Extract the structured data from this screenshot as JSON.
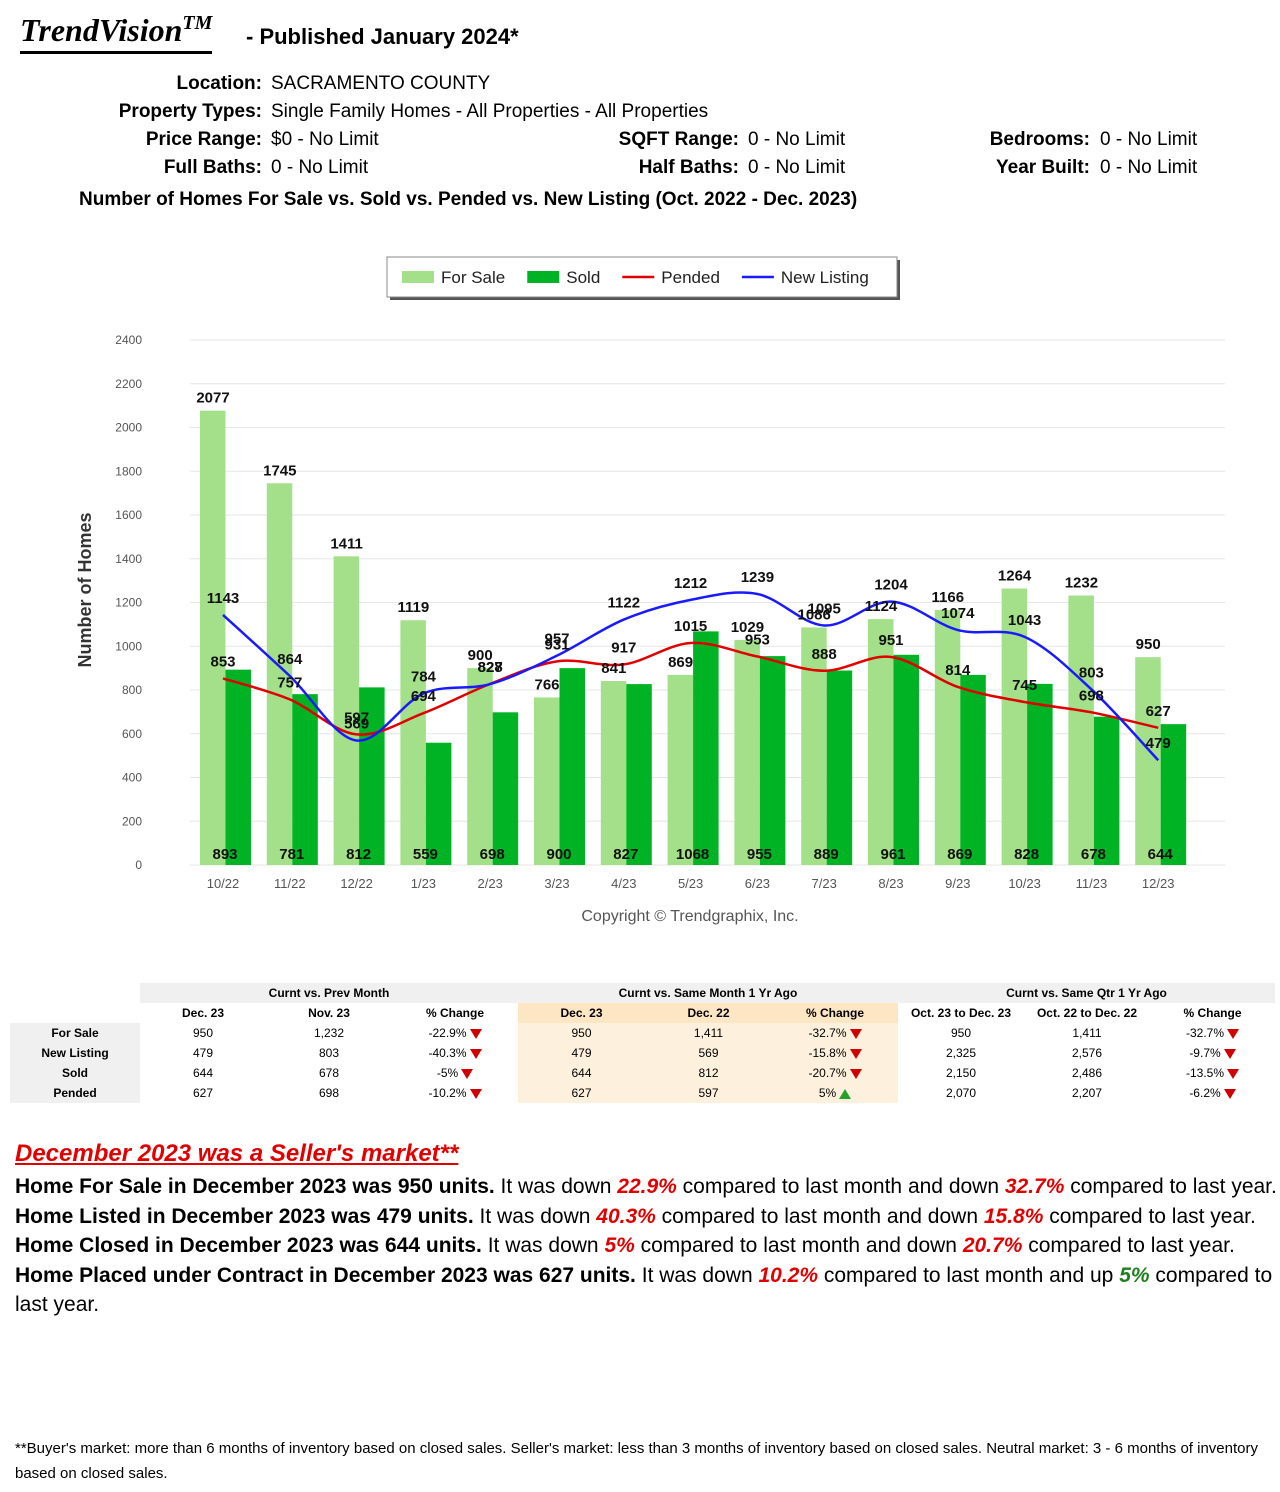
{
  "header": {
    "brand": "TrendVision",
    "brand_mark": "TM",
    "published": "- Published January 2024*"
  },
  "filters": [
    {
      "label": "Location:",
      "value": "SACRAMENTO COUNTY"
    },
    {
      "label": "Property Types:",
      "value": "Single Family Homes - All Properties - All Properties"
    },
    {
      "label": "Price Range:",
      "value": "$0 - No Limit"
    },
    {
      "label": "SQFT Range:",
      "value": "0 - No Limit"
    },
    {
      "label": "Bedrooms:",
      "value": "0 - No Limit"
    },
    {
      "label": "Full Baths:",
      "value": "0 - No Limit"
    },
    {
      "label": "Half Baths:",
      "value": "0 - No Limit"
    },
    {
      "label": "Year Built:",
      "value": "0 - No Limit"
    }
  ],
  "chart_data": {
    "type": "bar",
    "title": "Number of Homes For Sale vs. Sold vs. Pended vs. New Listing (Oct. 2022 - Dec. 2023)",
    "y_label": "Number of Homes",
    "copyright": "Copyright © Trendgraphix, Inc.",
    "categories": [
      "10/22",
      "11/22",
      "12/22",
      "1/23",
      "2/23",
      "3/23",
      "4/23",
      "5/23",
      "6/23",
      "7/23",
      "8/23",
      "9/23",
      "10/23",
      "11/23",
      "12/23"
    ],
    "ylim": [
      0,
      2400
    ],
    "yticks": [
      0,
      200,
      400,
      600,
      800,
      1000,
      1200,
      1400,
      1600,
      1800,
      2000,
      2200,
      2400
    ],
    "grid": true,
    "series": [
      {
        "name": "For Sale",
        "type": "bar",
        "color": "#a4e08a",
        "values": [
          2077,
          1745,
          1411,
          1119,
          900,
          766,
          841,
          869,
          1029,
          1086,
          1124,
          1166,
          1264,
          1232,
          950
        ]
      },
      {
        "name": "Sold",
        "type": "bar",
        "color": "#00b324",
        "values": [
          893,
          781,
          812,
          559,
          698,
          900,
          827,
          1068,
          955,
          889,
          961,
          869,
          828,
          678,
          644
        ]
      },
      {
        "name": "Pended",
        "type": "line",
        "color": "#e00000",
        "values": [
          853,
          757,
          597,
          694,
          828,
          931,
          917,
          1015,
          953,
          888,
          951,
          814,
          745,
          698,
          627
        ]
      },
      {
        "name": "New Listing",
        "type": "line",
        "color": "#1a1aff",
        "values": [
          1143,
          864,
          569,
          784,
          827,
          957,
          1122,
          1212,
          1239,
          1095,
          1204,
          1074,
          1043,
          803,
          479
        ]
      }
    ]
  },
  "table": {
    "groups": [
      "Curnt vs. Prev Month",
      "Curnt vs. Same Month 1 Yr Ago",
      "Curnt vs. Same Qtr 1 Yr Ago"
    ],
    "columns": [
      "Dec. 23",
      "Nov. 23",
      "% Change",
      "Dec. 23",
      "Dec. 22",
      "% Change",
      "Oct. 23 to Dec. 23",
      "Oct. 22 to Dec. 22",
      "% Change"
    ],
    "rows": [
      {
        "label": "For Sale",
        "cells": [
          "950",
          "1,232",
          "-22.9%",
          "950",
          "1,411",
          "-32.7%",
          "950",
          "1,411",
          "-32.7%"
        ]
      },
      {
        "label": "New Listing",
        "cells": [
          "479",
          "803",
          "-40.3%",
          "479",
          "569",
          "-15.8%",
          "2,325",
          "2,576",
          "-9.7%"
        ]
      },
      {
        "label": "Sold",
        "cells": [
          "644",
          "678",
          "-5%",
          "644",
          "812",
          "-20.7%",
          "2,150",
          "2,486",
          "-13.5%"
        ]
      },
      {
        "label": "Pended",
        "cells": [
          "627",
          "698",
          "-10.2%",
          "627",
          "597",
          "5%",
          "2,070",
          "2,207",
          "-6.2%"
        ]
      }
    ]
  },
  "summary": {
    "title": "December 2023 was a Seller's market**",
    "paragraphs": [
      [
        {
          "text": "Home For Sale in December 2023 was 950 units.",
          "style": "bold"
        },
        {
          "text": " It was down "
        },
        {
          "text": "22.9%",
          "style": "red"
        },
        {
          "text": " compared to last month and down "
        },
        {
          "text": "32.7%",
          "style": "red"
        },
        {
          "text": " compared to last year."
        }
      ],
      [
        {
          "text": "Home Listed in December 2023 was 479 units.",
          "style": "bold"
        },
        {
          "text": " It was down "
        },
        {
          "text": "40.3%",
          "style": "red"
        },
        {
          "text": " compared to last month and down "
        },
        {
          "text": "15.8%",
          "style": "red"
        },
        {
          "text": " compared to last year."
        }
      ],
      [
        {
          "text": "Home Closed in December 2023 was 644 units.",
          "style": "bold"
        },
        {
          "text": " It was down "
        },
        {
          "text": "5%",
          "style": "red"
        },
        {
          "text": " compared to last month and down "
        },
        {
          "text": "20.7%",
          "style": "red"
        },
        {
          "text": " compared to last year."
        }
      ],
      [
        {
          "text": "Home Placed under Contract in December 2023 was 627 units.",
          "style": "bold"
        },
        {
          "text": " It was down "
        },
        {
          "text": "10.2%",
          "style": "red"
        },
        {
          "text": " compared to last month and up "
        },
        {
          "text": "5%",
          "style": "green"
        },
        {
          "text": " compared to last year."
        }
      ]
    ],
    "footnote": "**Buyer's market: more than 6 months of inventory based on closed sales. Seller's market: less than 3 months of inventory based on closed sales. Neutral market: 3 - 6 months of inventory based on closed sales."
  }
}
